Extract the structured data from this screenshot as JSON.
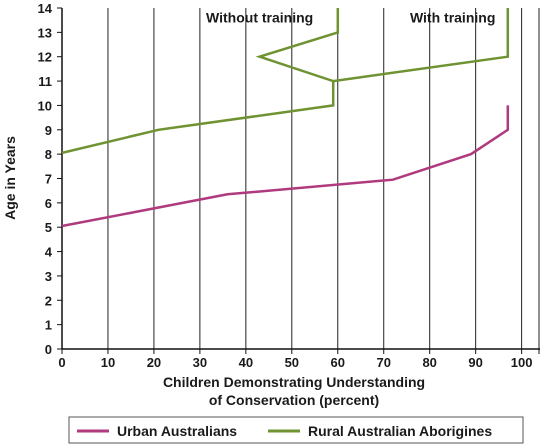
{
  "chart_data": {
    "type": "line",
    "xlabel": [
      "Children Demonstrating Understanding",
      "of Conservation (percent)"
    ],
    "ylabel": "Age in Years",
    "xlim": [
      0,
      104
    ],
    "ylim": [
      0,
      14
    ],
    "x_ticks": [
      0,
      10,
      20,
      30,
      40,
      50,
      60,
      70,
      80,
      90,
      100
    ],
    "y_ticks": [
      0,
      1,
      2,
      3,
      4,
      5,
      6,
      7,
      8,
      9,
      10,
      11,
      12,
      13,
      14
    ],
    "grid": "vertical",
    "legend_position": "bottom",
    "annotations": [
      {
        "text": "Without training",
        "x": 43,
        "y": 13.6
      },
      {
        "text": "With training",
        "x": 85,
        "y": 13.6
      }
    ],
    "series": [
      {
        "name": "Urban Australians",
        "color": "#b03a7e",
        "points": [
          [
            0,
            5.05
          ],
          [
            36,
            6.35
          ],
          [
            72,
            6.95
          ],
          [
            89,
            8.0
          ],
          [
            97,
            9.0
          ],
          [
            97,
            10.0
          ]
        ]
      },
      {
        "name": "Rural Australian Aborigines",
        "color": "#6f9332",
        "points": [
          [
            0,
            8.05
          ],
          [
            21,
            9.0
          ],
          [
            59,
            10.0
          ],
          [
            59,
            11.0
          ],
          [
            43,
            12.0
          ],
          [
            60,
            13.0
          ],
          [
            60,
            14.0
          ]
        ]
      },
      {
        "name": "",
        "color": "#6f9332",
        "points": [
          [
            59,
            11.0
          ],
          [
            97,
            12.0
          ],
          [
            97,
            14.0
          ]
        ]
      }
    ]
  }
}
